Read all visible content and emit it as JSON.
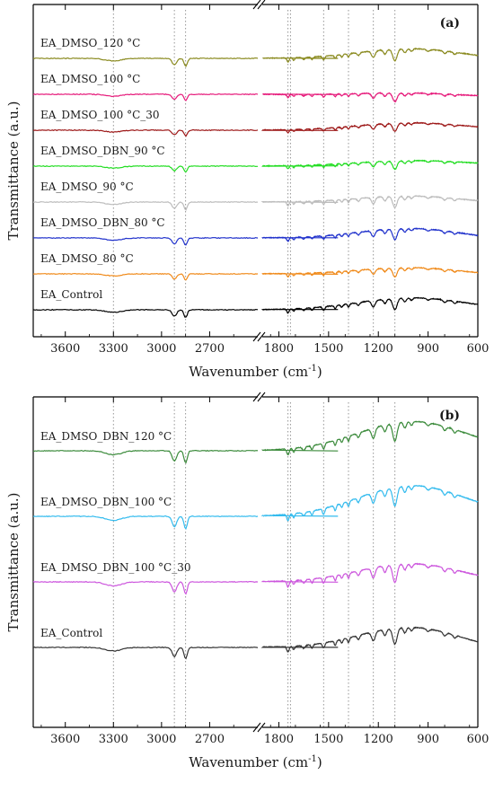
{
  "chart_data": [
    {
      "panel": "(a)",
      "type": "line",
      "xlabel": "Wavenumber (cm",
      "xlabel_sup": "-1",
      "xlabel_tail": ")",
      "ylabel": "Transmittance (a.u.)",
      "x_reversed": true,
      "x_break": [
        1900,
        3800
      ],
      "xlim_left": [
        3800,
        2400
      ],
      "xlim_right": [
        1900,
        600
      ],
      "xticks": [
        3600,
        3300,
        3000,
        2700,
        1800,
        1500,
        1200,
        900,
        600
      ],
      "reference_lines": [
        3300,
        2920,
        2850,
        1745,
        1730,
        1530,
        1380,
        1230,
        1100
      ],
      "series": [
        {
          "name": "EA_DMSO_120 °C",
          "color": "#8a8a1f"
        },
        {
          "name": "EA_DMSO_100 °C",
          "color": "#e6197a"
        },
        {
          "name": "EA_DMSO_100 °C_30",
          "color": "#9c1616"
        },
        {
          "name": "EA_DMSO_DBN_90 °C",
          "color": "#22dd22"
        },
        {
          "name": "EA_DMSO_90 °C",
          "color": "#bcbcbc"
        },
        {
          "name": "EA_DMSO_DBN_80 °C",
          "color": "#2233cc"
        },
        {
          "name": "EA_DMSO_80 °C",
          "color": "#f08a1a"
        },
        {
          "name": "EA_Control",
          "color": "#000000"
        }
      ]
    },
    {
      "panel": "(b)",
      "type": "line",
      "xlabel": "Wavenumber (cm",
      "xlabel_sup": "-1",
      "xlabel_tail": ")",
      "ylabel": "Transmittance (a.u.)",
      "x_reversed": true,
      "x_break": [
        1900,
        3800
      ],
      "xlim_left": [
        3800,
        2400
      ],
      "xlim_right": [
        1900,
        600
      ],
      "xticks": [
        3600,
        3300,
        3000,
        2700,
        1800,
        1500,
        1200,
        900,
        600
      ],
      "reference_lines": [
        3300,
        2920,
        2850,
        1745,
        1730,
        1530,
        1380,
        1230,
        1100
      ],
      "series": [
        {
          "name": "EA_DMSO_DBN_120 °C",
          "color": "#3a8a3a"
        },
        {
          "name": "EA_DMSO_DBN_100 °C",
          "color": "#33bbee"
        },
        {
          "name": "EA_DMSO_DBN_100 °C_30",
          "color": "#cc55dd"
        },
        {
          "name": "EA_Control",
          "color": "#333333"
        }
      ]
    }
  ]
}
